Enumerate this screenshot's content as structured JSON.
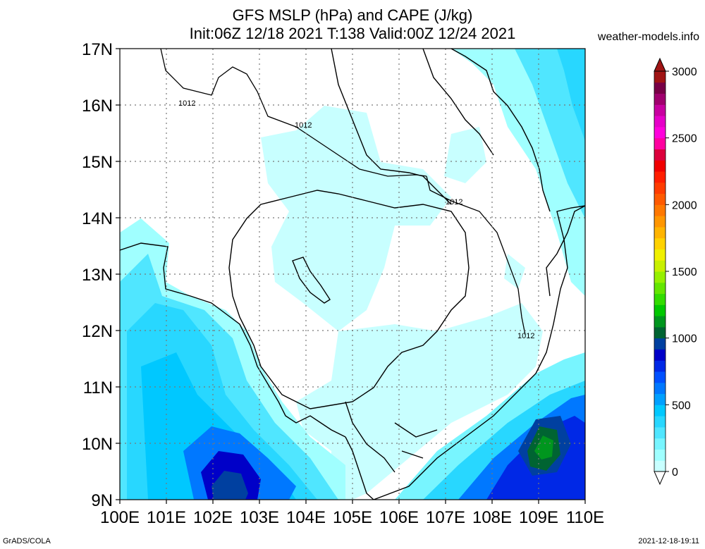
{
  "header": {
    "title_line1": "GFS MSLP (hPa) and CAPE (J/kg)",
    "title_line2": "Init:06Z 12/18 2021 T:138 Valid:00Z 12/24 2021",
    "site": "weather-models.info"
  },
  "footer": {
    "left": "GrADS/COLA",
    "right": "2021-12-18-19:11"
  },
  "map": {
    "lon_range": [
      100,
      110
    ],
    "lat_range": [
      9,
      17
    ],
    "lon_labels": [
      "100E",
      "101E",
      "102E",
      "103E",
      "104E",
      "105E",
      "106E",
      "107E",
      "108E",
      "109E",
      "110E"
    ],
    "lat_labels": [
      "9N",
      "10N",
      "11N",
      "12N",
      "13N",
      "14N",
      "15N",
      "16N",
      "17N"
    ],
    "isobar_labels": [
      "1012",
      "1012",
      "1012",
      "1012"
    ]
  },
  "colorbar": {
    "min_label": "0",
    "labels": [
      "500",
      "1000",
      "1500",
      "2000",
      "2500",
      "3000"
    ],
    "colors": [
      "#c8ffff",
      "#a0ffff",
      "#78f5ff",
      "#50e6ff",
      "#28d7ff",
      "#00c8ff",
      "#00a0ff",
      "#0078ff",
      "#0050ff",
      "#0028e6",
      "#0000c8",
      "#0040a0",
      "#006432",
      "#00961e",
      "#00c800",
      "#32dc00",
      "#64e600",
      "#96f000",
      "#c8f000",
      "#f0f000",
      "#ffd200",
      "#ffb400",
      "#ff9600",
      "#ff7800",
      "#ff5a00",
      "#ff3c00",
      "#ff1e00",
      "#f00000",
      "#dc003c",
      "#ff00a0",
      "#ff00dc",
      "#e600c8",
      "#c800a0",
      "#a0006e",
      "#780046",
      "#a01414"
    ]
  }
}
